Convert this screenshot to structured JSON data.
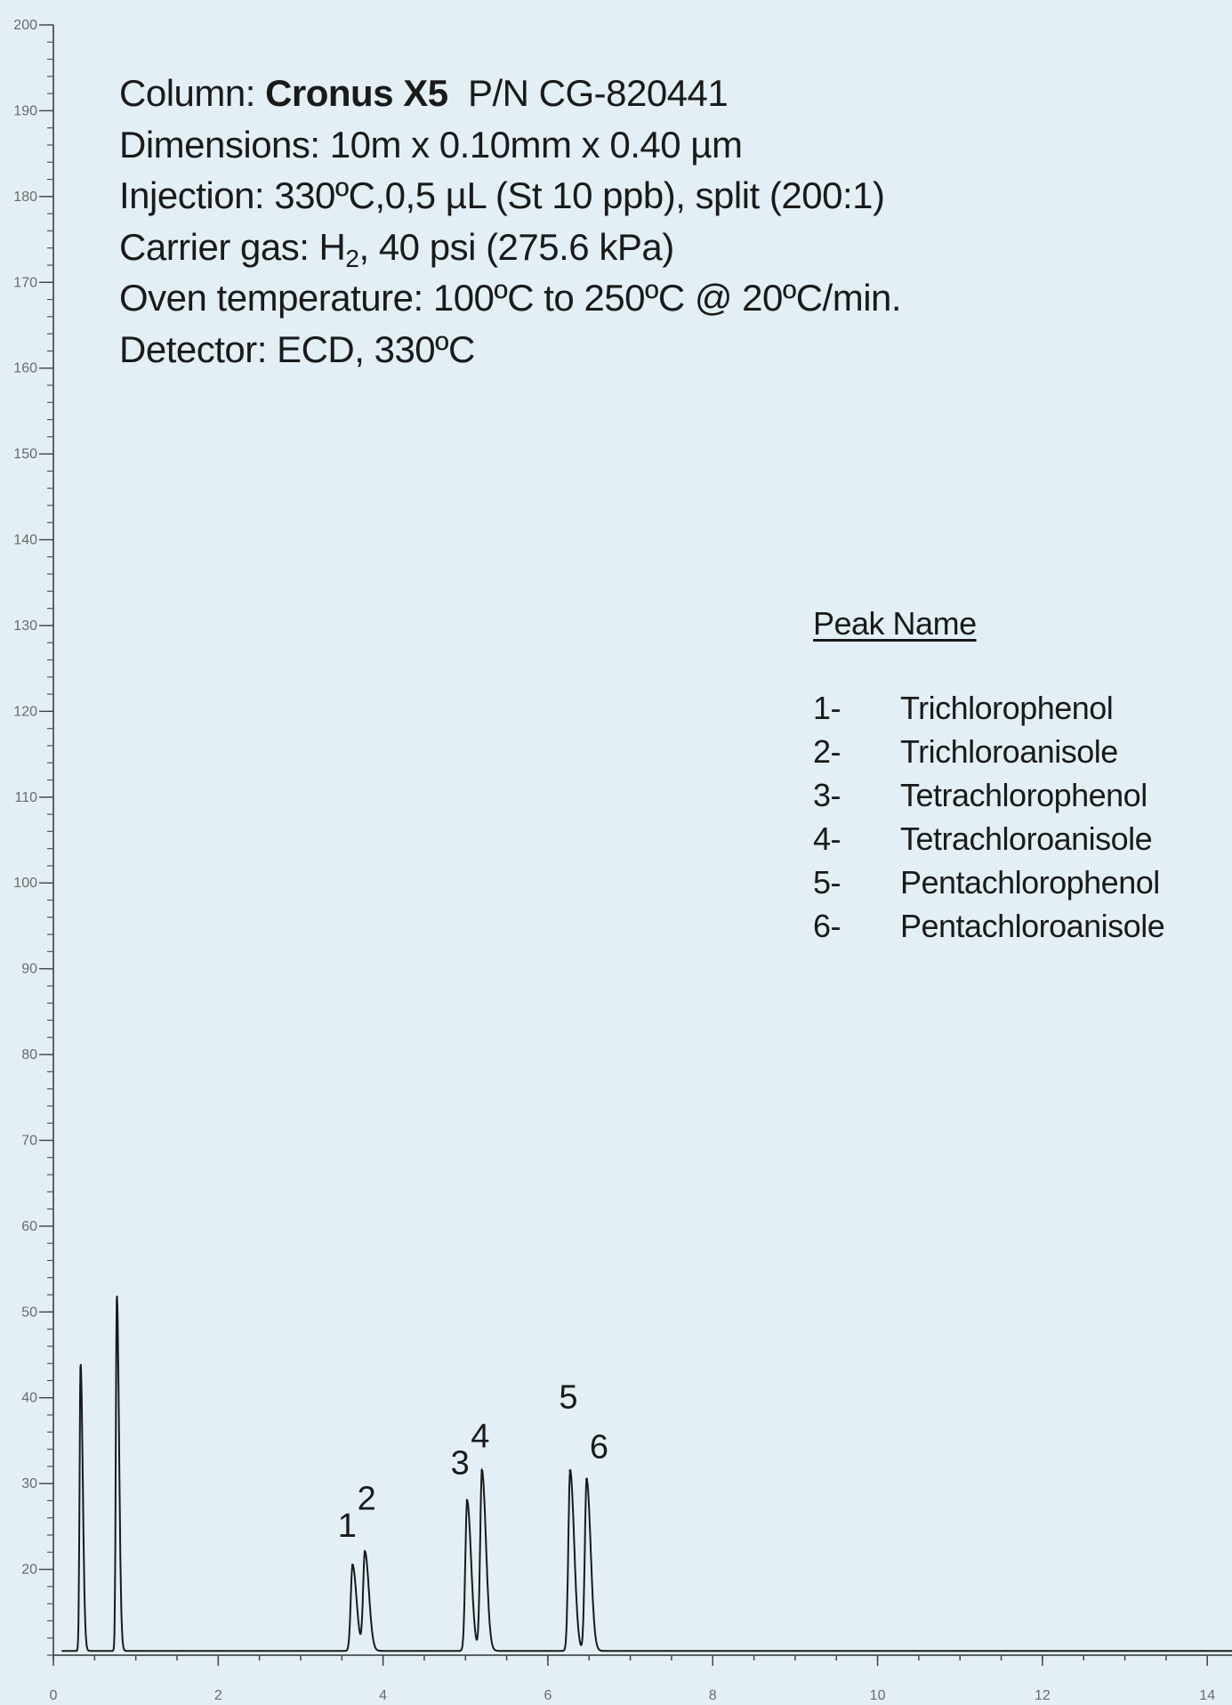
{
  "info": {
    "column_prefix": "Column: ",
    "column_name": "Cronus X5",
    "column_pn": "P/N CG-820441",
    "dimensions": "Dimensions: 10m x 0.10mm x 0.40 µm",
    "injection": "Injection: 330ºC,0,5 µL (St 10 ppb), split (200:1)",
    "carrier_prefix": "Carrier gas: H",
    "carrier_sub": "2",
    "carrier_suffix": ", 40 psi (275.6 kPa)",
    "oven": "Oven temperature: 100ºC to 250ºC @ 20ºC/min.",
    "detector": "Detector: ECD, 330ºC"
  },
  "legend": {
    "title": "Peak Name",
    "items": [
      {
        "num": "1-",
        "name": "Trichlorophenol"
      },
      {
        "num": "2-",
        "name": "Trichloroanisole"
      },
      {
        "num": "3-",
        "name": "Tetrachlorophenol"
      },
      {
        "num": "4-",
        "name": "Tetrachloroanisole"
      },
      {
        "num": "5-",
        "name": "Pentachlorophenol"
      },
      {
        "num": "6-",
        "name": "Pentachloroanisole"
      }
    ]
  },
  "chart_data": {
    "type": "line",
    "title": "",
    "xlabel": "",
    "ylabel": "",
    "xlim": [
      0,
      14.3
    ],
    "ylim": [
      10,
      200
    ],
    "x_ticks": [
      "0",
      "2",
      "4",
      "6",
      "8",
      "10",
      "12",
      "14"
    ],
    "y_ticks": [
      "20",
      "30",
      "40",
      "50",
      "60",
      "70",
      "80",
      "90",
      "100",
      "110",
      "120",
      "130",
      "140",
      "150",
      "160",
      "170",
      "180",
      "190",
      "200"
    ],
    "baseline": 10.5,
    "solvent_peaks": [
      {
        "x": 0.33,
        "y": 44
      },
      {
        "x": 0.77,
        "y": 52
      }
    ],
    "peaks": [
      {
        "label": "1",
        "x": 3.63,
        "y": 20.5
      },
      {
        "label": "2",
        "x": 3.78,
        "y": 22
      },
      {
        "label": "3",
        "x": 5.02,
        "y": 28
      },
      {
        "label": "4",
        "x": 5.2,
        "y": 31.5
      },
      {
        "label": "5",
        "x": 6.27,
        "y": 31.5
      },
      {
        "label": "6",
        "x": 6.47,
        "y": 30.5
      }
    ],
    "colors": {
      "trace": "#1a1a1a",
      "axis": "#333333",
      "background": "#e3eff5"
    }
  }
}
